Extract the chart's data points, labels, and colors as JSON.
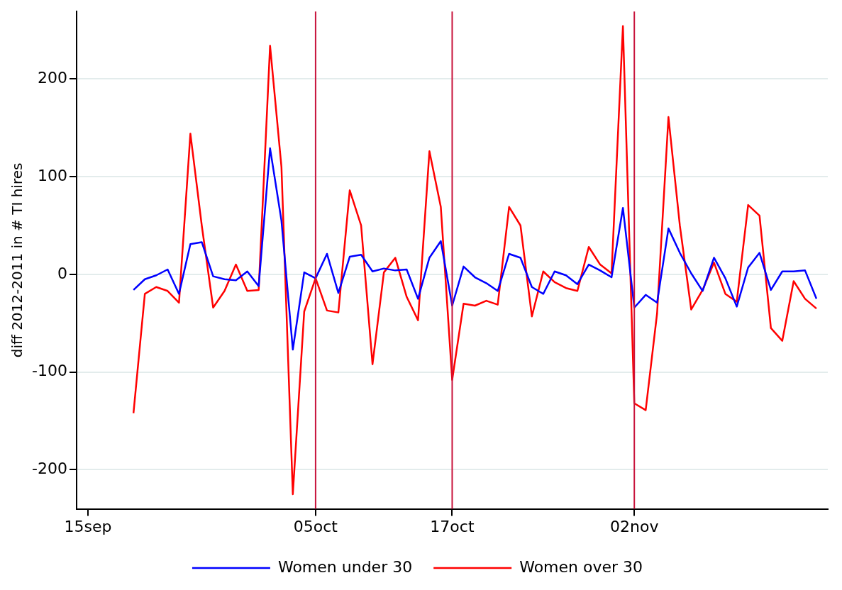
{
  "chart_data": {
    "type": "line",
    "ylabel": "diff 2012-2011 in # TI hires",
    "x": [
      "--09-19",
      "--09-20",
      "--09-21",
      "--09-22",
      "--09-23",
      "--09-24",
      "--09-25",
      "--09-26",
      "--09-27",
      "--09-28",
      "--09-29",
      "--09-30",
      "--10-01",
      "--10-02",
      "--10-03",
      "--10-04",
      "--10-05",
      "--10-06",
      "--10-07",
      "--10-08",
      "--10-09",
      "--10-10",
      "--10-11",
      "--10-12",
      "--10-13",
      "--10-14",
      "--10-15",
      "--10-16",
      "--10-17",
      "--10-18",
      "--10-19",
      "--10-20",
      "--10-21",
      "--10-22",
      "--10-23",
      "--10-24",
      "--10-25",
      "--10-26",
      "--10-27",
      "--10-28",
      "--10-29",
      "--10-30",
      "--10-31",
      "--11-01",
      "--11-02",
      "--11-03",
      "--11-04",
      "--11-05",
      "--11-06",
      "--11-07",
      "--11-08",
      "--11-09",
      "--11-10",
      "--11-11",
      "--11-12",
      "--11-13",
      "--11-14",
      "--11-15",
      "--11-16",
      "--11-17",
      "--11-18"
    ],
    "series": [
      {
        "name": "Women under 30",
        "color": "#0000ff",
        "values": [
          -16,
          -5,
          -1,
          5,
          -20,
          31,
          33,
          -2,
          -5,
          -6,
          3,
          -12,
          129,
          55,
          -77,
          2,
          -4,
          21,
          -19,
          18,
          20,
          3,
          6,
          4,
          5,
          -25,
          17,
          34,
          -32,
          8,
          -3,
          -9,
          -17,
          21,
          17,
          -13,
          -20,
          3,
          -1,
          -10,
          10,
          4,
          -3,
          68,
          -34,
          -21,
          -29,
          47,
          22,
          1,
          -17,
          17,
          -4,
          -33,
          7,
          22,
          -16,
          3,
          3,
          4,
          -25
        ]
      },
      {
        "name": "Women over 30",
        "color": "#ff0000",
        "values": [
          -142,
          -20,
          -13,
          -17,
          -29,
          144,
          50,
          -34,
          -17,
          10,
          -17,
          -16,
          234,
          110,
          -225,
          -38,
          -4,
          -37,
          -39,
          86,
          50,
          -92,
          2,
          17,
          -23,
          -47,
          126,
          69,
          -108,
          -30,
          -32,
          -27,
          -31,
          69,
          50,
          -43,
          3,
          -8,
          -14,
          -17,
          28,
          10,
          1,
          254,
          -132,
          -139,
          -40,
          161,
          50,
          -36,
          -16,
          12,
          -20,
          -28,
          71,
          60,
          -55,
          -68,
          -7,
          -25,
          -35
        ]
      }
    ],
    "xlim": [
      "--09-14",
      "--11-19"
    ],
    "xticks": [
      {
        "value": "--09-15",
        "label": "15sep"
      },
      {
        "value": "--10-05",
        "label": "05oct"
      },
      {
        "value": "--10-17",
        "label": "17oct"
      },
      {
        "value": "--11-02",
        "label": "02nov"
      }
    ],
    "ylim": [
      -240,
      269
    ],
    "yticks": [
      -200,
      -100,
      0,
      100,
      200
    ],
    "ref_lines": [
      {
        "axis": "x",
        "value": "--10-05",
        "color": "#c8143c"
      },
      {
        "axis": "x",
        "value": "--11-02",
        "color": "#c8143c"
      },
      {
        "axis": "x",
        "value": "--10-17",
        "color": "#c8143c"
      }
    ],
    "grid": "y",
    "legend": "bottom",
    "marker": "none",
    "line_style": "solid"
  }
}
